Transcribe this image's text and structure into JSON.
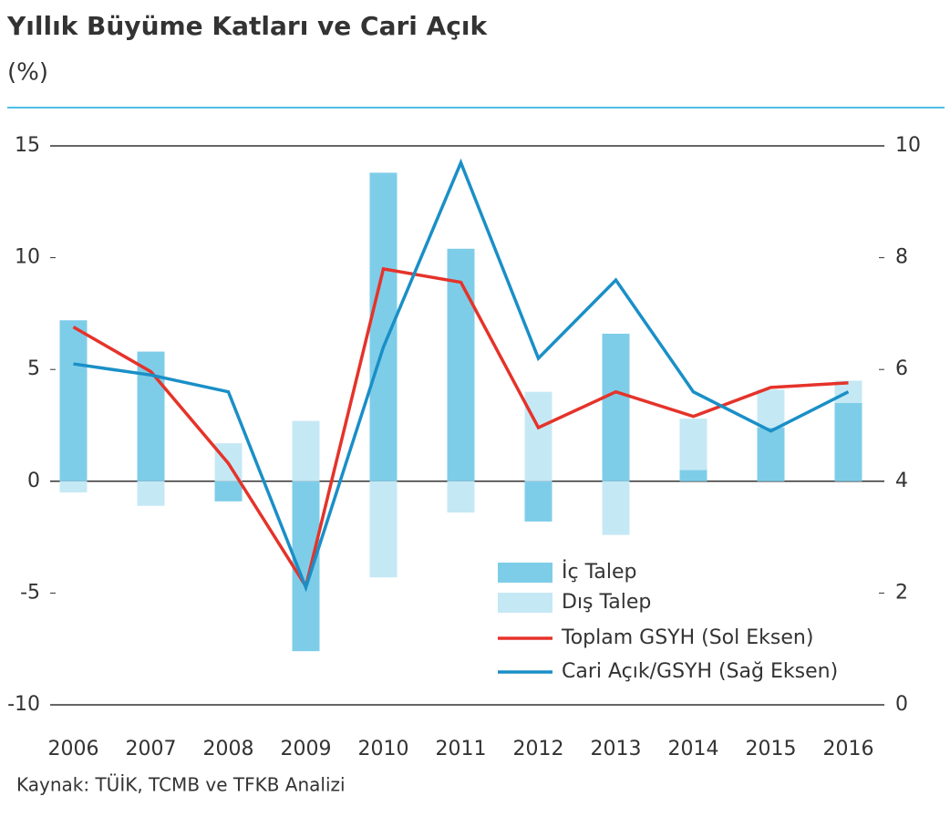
{
  "chart_data": {
    "type": "bar-line",
    "title": "Yıllık Büyüme Katları ve Cari Açık",
    "subtitle": "(%)",
    "source": "Kaynak: TÜİK, TCMB ve TFKB Analizi",
    "categories": [
      "2006",
      "2007",
      "2008",
      "2009",
      "2010",
      "2011",
      "2012",
      "2013",
      "2014",
      "2015",
      "2016"
    ],
    "ylim": [
      -10,
      15
    ],
    "yticks": [
      15,
      10,
      5,
      0,
      -5,
      -10
    ],
    "y2lim": [
      0,
      10
    ],
    "y2ticks": [
      10,
      8,
      6,
      4,
      2,
      0
    ],
    "series": [
      {
        "name": "İç Talep",
        "kind": "bar",
        "color": "#7ecde8",
        "values": [
          7.2,
          5.8,
          -0.9,
          -7.6,
          13.8,
          10.4,
          -1.8,
          6.6,
          0.5,
          2.4,
          3.5
        ]
      },
      {
        "name": "Dış Talep",
        "kind": "bar",
        "color": "#c5e8f5",
        "values": [
          -0.5,
          -1.1,
          1.7,
          2.7,
          -4.3,
          -1.4,
          4.0,
          -2.4,
          2.3,
          1.7,
          1.0
        ]
      },
      {
        "name": "Toplam GSYH (Sol Eksen)",
        "kind": "line",
        "color": "#e5332a",
        "values": [
          6.9,
          4.9,
          0.8,
          -4.7,
          9.5,
          8.9,
          2.4,
          4.0,
          2.9,
          4.2,
          4.4
        ]
      },
      {
        "name": "Cari Açık/GSYH (Sağ Eksen)",
        "kind": "line",
        "axis": "y2",
        "color": "#1a8fc7",
        "values": [
          6.1,
          5.9,
          5.6,
          2.1,
          6.4,
          9.7,
          6.2,
          7.6,
          5.6,
          4.9,
          5.6
        ]
      }
    ]
  }
}
